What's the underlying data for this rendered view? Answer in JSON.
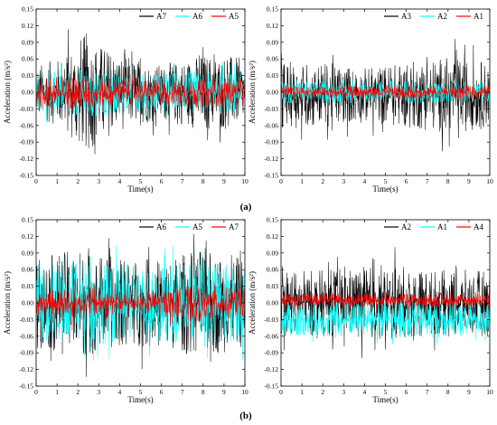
{
  "panel_labels": {
    "a": "(a)",
    "b": "(b)"
  },
  "chart_data": [
    {
      "type": "line",
      "ylabel": "Acceleration (m/s²)",
      "xlabel": "Time(s)",
      "xlim": [
        0,
        10
      ],
      "ylim": [
        -0.15,
        0.15
      ],
      "xticks": [
        0,
        1,
        2,
        3,
        4,
        5,
        6,
        7,
        8,
        9,
        10
      ],
      "yticks": [
        -0.15,
        -0.12,
        -0.09,
        -0.06,
        -0.03,
        0.0,
        0.03,
        0.06,
        0.09,
        0.12,
        0.15
      ],
      "yticklabels": [
        "-0.15",
        "-0.12",
        "-0.09",
        "-0.06",
        "-0.03",
        "0.00",
        "0.03",
        "0.06",
        "0.09",
        "0.12",
        "0.15"
      ],
      "legend_position": "top-right",
      "series": [
        {
          "name": "A7",
          "color": "#000000",
          "amplitude_envelope": [
            [
              0,
              0.05
            ],
            [
              1,
              0.06
            ],
            [
              2,
              0.1
            ],
            [
              2.5,
              0.11
            ],
            [
              3,
              0.09
            ],
            [
              4,
              0.07
            ],
            [
              5,
              0.06
            ],
            [
              6,
              0.05
            ],
            [
              7,
              0.06
            ],
            [
              8,
              0.07
            ],
            [
              9,
              0.07
            ],
            [
              10,
              0.06
            ]
          ],
          "center": 0.0
        },
        {
          "name": "A6",
          "color": "#00FFFF",
          "amplitude_envelope": [
            [
              0,
              0.035
            ],
            [
              2,
              0.045
            ],
            [
              3,
              0.045
            ],
            [
              5,
              0.035
            ],
            [
              8,
              0.04
            ],
            [
              10,
              0.035
            ]
          ],
          "center": 0.0
        },
        {
          "name": "A5",
          "color": "#FF0000",
          "amplitude_envelope": [
            [
              0,
              0.025
            ],
            [
              2,
              0.035
            ],
            [
              3,
              0.03
            ],
            [
              5,
              0.022
            ],
            [
              8,
              0.028
            ],
            [
              10,
              0.025
            ]
          ],
          "center": 0.0
        }
      ]
    },
    {
      "type": "line",
      "ylabel": "Acceleration (m/s²)",
      "xlabel": "Time(s)",
      "xlim": [
        0,
        10
      ],
      "ylim": [
        -0.15,
        0.15
      ],
      "xticks": [
        0,
        1,
        2,
        3,
        4,
        5,
        6,
        7,
        8,
        9,
        10
      ],
      "yticks": [
        -0.15,
        -0.12,
        -0.09,
        -0.06,
        -0.03,
        0.0,
        0.03,
        0.06,
        0.09,
        0.12,
        0.15
      ],
      "yticklabels": [
        "-0.15",
        "-0.12",
        "-0.09",
        "-0.06",
        "-0.03",
        "0.00",
        "0.03",
        "0.06",
        "0.09",
        "0.12",
        "0.15"
      ],
      "legend_position": "top-right",
      "series": [
        {
          "name": "A3",
          "color": "#000000",
          "amplitude_envelope": [
            [
              0,
              0.06
            ],
            [
              2,
              0.06
            ],
            [
              4,
              0.05
            ],
            [
              6,
              0.06
            ],
            [
              8,
              0.07
            ],
            [
              10,
              0.06
            ]
          ],
          "center": -0.005
        },
        {
          "name": "A2",
          "color": "#00FFFF",
          "amplitude_envelope": [
            [
              0,
              0.02
            ],
            [
              5,
              0.02
            ],
            [
              10,
              0.02
            ]
          ],
          "center": 0.0
        },
        {
          "name": "A1",
          "color": "#FF0000",
          "amplitude_envelope": [
            [
              0,
              0.012
            ],
            [
              5,
              0.012
            ],
            [
              10,
              0.012
            ]
          ],
          "center": 0.0
        }
      ]
    },
    {
      "type": "line",
      "ylabel": "Acceleration (m/s²)",
      "xlabel": "Time(s)",
      "xlim": [
        0,
        10
      ],
      "ylim": [
        -0.15,
        0.15
      ],
      "xticks": [
        0,
        1,
        2,
        3,
        4,
        5,
        6,
        7,
        8,
        9,
        10
      ],
      "yticks": [
        -0.15,
        -0.12,
        -0.09,
        -0.06,
        -0.03,
        0.0,
        0.03,
        0.06,
        0.09,
        0.12,
        0.15
      ],
      "yticklabels": [
        "-0.15",
        "-0.12",
        "-0.09",
        "-0.06",
        "-0.03",
        "0.00",
        "0.03",
        "0.06",
        "0.09",
        "0.12",
        "0.15"
      ],
      "legend_position": "top-right",
      "series": [
        {
          "name": "A6",
          "color": "#000000",
          "amplitude_envelope": [
            [
              0,
              0.08
            ],
            [
              2,
              0.1
            ],
            [
              4,
              0.08
            ],
            [
              6,
              0.08
            ],
            [
              8,
              0.1
            ],
            [
              10,
              0.08
            ]
          ],
          "center": 0.0
        },
        {
          "name": "A5",
          "color": "#00FFFF",
          "amplitude_envelope": [
            [
              0,
              0.07
            ],
            [
              2,
              0.08
            ],
            [
              4,
              0.07
            ],
            [
              6,
              0.07
            ],
            [
              8,
              0.08
            ],
            [
              10,
              0.07
            ]
          ],
          "center": 0.0
        },
        {
          "name": "A7",
          "color": "#FF0000",
          "amplitude_envelope": [
            [
              0,
              0.02
            ],
            [
              1.5,
              0.035
            ],
            [
              3,
              0.025
            ],
            [
              5,
              0.02
            ],
            [
              8,
              0.035
            ],
            [
              10,
              0.025
            ]
          ],
          "center": 0.0
        }
      ]
    },
    {
      "type": "line",
      "ylabel": "Acceleration (m/s²)",
      "xlabel": "Time(s)",
      "xlim": [
        0,
        10
      ],
      "ylim": [
        -0.15,
        0.15
      ],
      "xticks": [
        0,
        1,
        2,
        3,
        4,
        5,
        6,
        7,
        8,
        9,
        10
      ],
      "yticks": [
        -0.15,
        -0.12,
        -0.09,
        -0.06,
        -0.03,
        0.0,
        0.03,
        0.06,
        0.09,
        0.12,
        0.15
      ],
      "yticklabels": [
        "-0.15",
        "-0.12",
        "-0.09",
        "-0.06",
        "-0.03",
        "0.00",
        "0.03",
        "0.06",
        "0.09",
        "0.12",
        "0.15"
      ],
      "legend_position": "top-right",
      "series": [
        {
          "name": "A2",
          "color": "#000000",
          "amplitude_envelope": [
            [
              0,
              0.06
            ],
            [
              2,
              0.06
            ],
            [
              5,
              0.07
            ],
            [
              7,
              0.06
            ],
            [
              10,
              0.06
            ]
          ],
          "center": 0.0
        },
        {
          "name": "A1",
          "color": "#00FFFF",
          "amplitude_envelope": [
            [
              0,
              0.03
            ],
            [
              5,
              0.035
            ],
            [
              10,
              0.03
            ]
          ],
          "center": -0.03
        },
        {
          "name": "A4",
          "color": "#FF0000",
          "amplitude_envelope": [
            [
              0,
              0.012
            ],
            [
              5,
              0.012
            ],
            [
              10,
              0.012
            ]
          ],
          "center": 0.005
        }
      ]
    }
  ]
}
